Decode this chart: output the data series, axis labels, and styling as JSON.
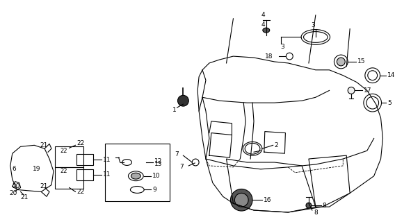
{
  "title": "",
  "bg_color": "#ffffff",
  "line_color": "#000000",
  "part_numbers": [
    1,
    2,
    3,
    4,
    5,
    6,
    7,
    8,
    9,
    10,
    11,
    12,
    13,
    14,
    15,
    16,
    17,
    18,
    19,
    20,
    21,
    22
  ],
  "fig_width": 5.68,
  "fig_height": 3.2,
  "dpi": 100
}
